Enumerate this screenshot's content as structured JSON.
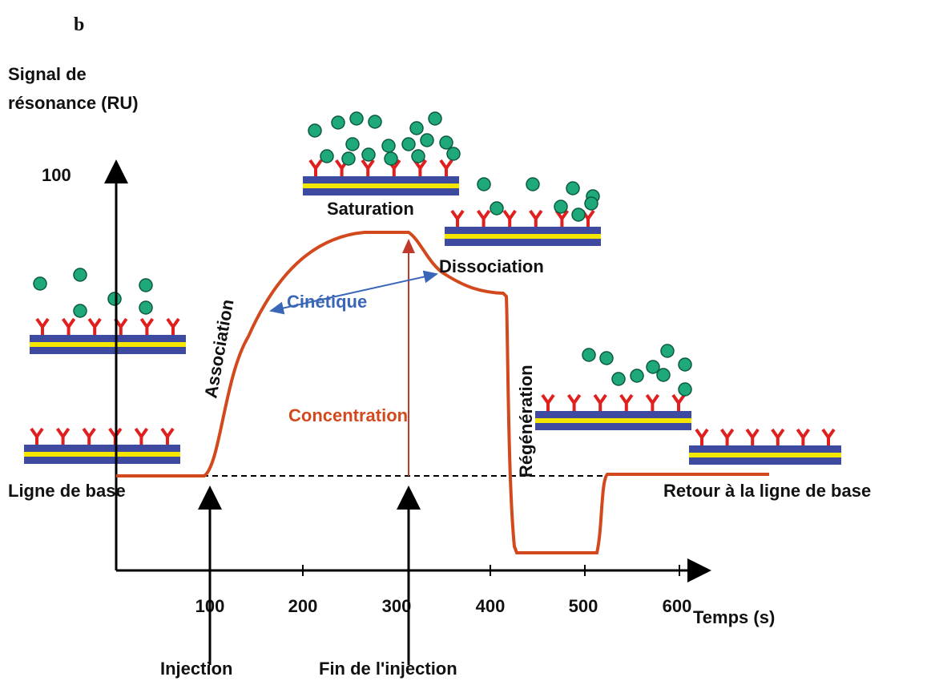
{
  "label": "b",
  "y_axis": {
    "title_lines": [
      "Signal de",
      "résonance (RU)"
    ],
    "tick": "100"
  },
  "x_axis": {
    "ticks": [
      "100",
      "200",
      "300",
      "400",
      "500",
      "600"
    ],
    "title": "Temps (s)"
  },
  "phases": {
    "baseline": "Ligne de base",
    "association": "Association",
    "kinetics": "Cinétique",
    "saturation": "Saturation",
    "dissociation": "Dissociation",
    "concentration": "Concentration",
    "regeneration": "Régénération",
    "return": "Retour à la ligne de base"
  },
  "events": {
    "injection": "Injection",
    "end": "Fin de l'injection"
  }
}
